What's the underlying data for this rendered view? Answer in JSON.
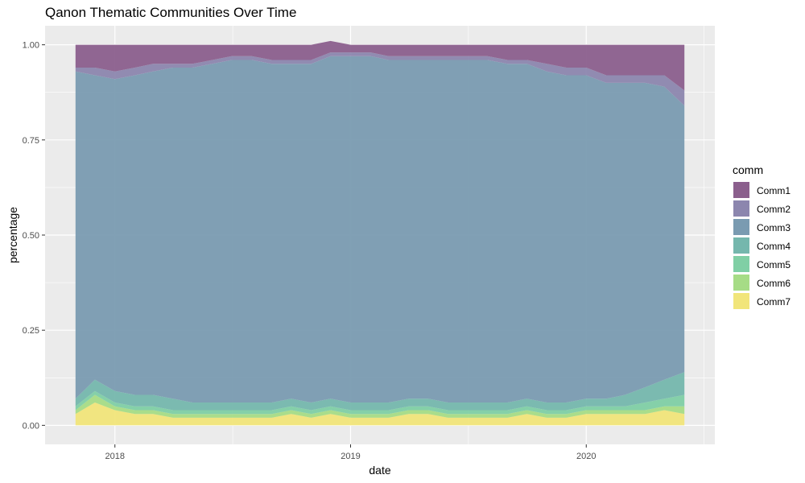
{
  "chart_data": {
    "type": "area",
    "title": "Qanon Thematic Communities Over Time",
    "xlabel": "date",
    "ylabel": "percentage",
    "x_range": [
      "2017-11-01",
      "2020-06-01"
    ],
    "x_ticks": [
      {
        "date": "2018-01-01",
        "label": "2018"
      },
      {
        "date": "2019-01-01",
        "label": "2019"
      },
      {
        "date": "2020-01-01",
        "label": "2020"
      }
    ],
    "ylim": [
      0,
      1
    ],
    "y_ticks": [
      0,
      0.25,
      0.5,
      0.75,
      1
    ],
    "y_tick_labels": [
      "0.00",
      "0.25",
      "0.50",
      "0.75",
      "1.00"
    ],
    "grid": true,
    "stacked": true,
    "legend": {
      "title": "comm",
      "position": "right",
      "entries": [
        "Comm1",
        "Comm2",
        "Comm3",
        "Comm4",
        "Comm5",
        "Comm6",
        "Comm7"
      ]
    },
    "colors": [
      "#8b5f8d",
      "#8c86ae",
      "#7a9bb1",
      "#75b7ad",
      "#80cfa5",
      "#a6dc86",
      "#f1e57a"
    ],
    "series": [
      {
        "name": "Comm7",
        "values": [
          0.03,
          0.06,
          0.04,
          0.03,
          0.03,
          0.02,
          0.02,
          0.02,
          0.02,
          0.02,
          0.02,
          0.03,
          0.02,
          0.03,
          0.02,
          0.02,
          0.02,
          0.03,
          0.03,
          0.02,
          0.02,
          0.02,
          0.02,
          0.03,
          0.02,
          0.02,
          0.03,
          0.03,
          0.03,
          0.03,
          0.04,
          0.03
        ]
      },
      {
        "name": "Comm6",
        "values": [
          0.01,
          0.02,
          0.01,
          0.01,
          0.01,
          0.01,
          0.01,
          0.01,
          0.01,
          0.01,
          0.01,
          0.01,
          0.01,
          0.01,
          0.01,
          0.01,
          0.01,
          0.01,
          0.01,
          0.01,
          0.01,
          0.01,
          0.01,
          0.01,
          0.01,
          0.01,
          0.01,
          0.01,
          0.01,
          0.01,
          0.01,
          0.02
        ]
      },
      {
        "name": "Comm5",
        "values": [
          0.01,
          0.01,
          0.01,
          0.01,
          0.01,
          0.01,
          0.01,
          0.01,
          0.01,
          0.01,
          0.01,
          0.01,
          0.01,
          0.01,
          0.01,
          0.01,
          0.01,
          0.01,
          0.01,
          0.01,
          0.01,
          0.01,
          0.01,
          0.01,
          0.01,
          0.01,
          0.01,
          0.01,
          0.01,
          0.02,
          0.02,
          0.03
        ]
      },
      {
        "name": "Comm4",
        "values": [
          0.02,
          0.03,
          0.03,
          0.03,
          0.03,
          0.03,
          0.02,
          0.02,
          0.02,
          0.02,
          0.02,
          0.02,
          0.02,
          0.02,
          0.02,
          0.02,
          0.02,
          0.02,
          0.02,
          0.02,
          0.02,
          0.02,
          0.02,
          0.02,
          0.02,
          0.02,
          0.02,
          0.02,
          0.03,
          0.04,
          0.05,
          0.06
        ]
      },
      {
        "name": "Comm3",
        "values": [
          0.86,
          0.8,
          0.82,
          0.84,
          0.85,
          0.87,
          0.88,
          0.89,
          0.9,
          0.9,
          0.89,
          0.88,
          0.89,
          0.9,
          0.91,
          0.91,
          0.9,
          0.89,
          0.89,
          0.9,
          0.9,
          0.9,
          0.89,
          0.88,
          0.87,
          0.86,
          0.85,
          0.83,
          0.82,
          0.8,
          0.77,
          0.7
        ]
      },
      {
        "name": "Comm2",
        "values": [
          0.01,
          0.02,
          0.02,
          0.02,
          0.02,
          0.01,
          0.01,
          0.01,
          0.01,
          0.01,
          0.01,
          0.01,
          0.01,
          0.01,
          0.01,
          0.01,
          0.01,
          0.01,
          0.01,
          0.01,
          0.01,
          0.01,
          0.01,
          0.01,
          0.02,
          0.02,
          0.02,
          0.02,
          0.02,
          0.02,
          0.03,
          0.04
        ]
      },
      {
        "name": "Comm1",
        "values": [
          0.06,
          0.06,
          0.07,
          0.06,
          0.05,
          0.05,
          0.05,
          0.04,
          0.03,
          0.03,
          0.04,
          0.04,
          0.04,
          0.03,
          0.02,
          0.02,
          0.03,
          0.03,
          0.03,
          0.03,
          0.03,
          0.03,
          0.04,
          0.04,
          0.05,
          0.06,
          0.06,
          0.08,
          0.08,
          0.08,
          0.08,
          0.12
        ]
      }
    ],
    "x": [
      "2017-11-01",
      "2017-12-01",
      "2018-01-01",
      "2018-02-01",
      "2018-03-01",
      "2018-04-01",
      "2018-05-01",
      "2018-06-01",
      "2018-07-01",
      "2018-08-01",
      "2018-09-01",
      "2018-10-01",
      "2018-11-01",
      "2018-12-01",
      "2019-01-01",
      "2019-02-01",
      "2019-03-01",
      "2019-04-01",
      "2019-05-01",
      "2019-06-01",
      "2019-07-01",
      "2019-08-01",
      "2019-09-01",
      "2019-10-01",
      "2019-11-01",
      "2019-12-01",
      "2020-01-01",
      "2020-02-01",
      "2020-03-01",
      "2020-04-01",
      "2020-05-01",
      "2020-06-01"
    ]
  }
}
